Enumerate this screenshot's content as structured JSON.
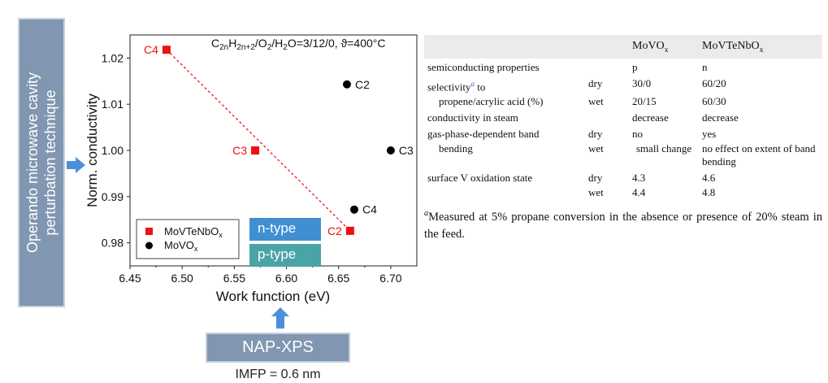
{
  "left_label": {
    "line1": "Operando microwave cavity",
    "line2": "perturbation technique"
  },
  "bottom_label": {
    "box": "NAP-XPS",
    "note": "IMFP = 0.6 nm"
  },
  "tags": {
    "n_type": "n-type",
    "p_type": "p-type"
  },
  "chart_data": {
    "type": "scatter",
    "title": "C2nH2n+2/O2/H2O=3/12/0, ϑ=400°C",
    "xlabel": "Work function (eV)",
    "ylabel": "Norm. conductivity",
    "xlim": [
      6.45,
      6.725
    ],
    "ylim": [
      0.975,
      1.025
    ],
    "x_ticks": [
      "6.45",
      "6.50",
      "6.55",
      "6.60",
      "6.65",
      "6.70"
    ],
    "y_ticks": [
      "0.98",
      "0.99",
      "1.00",
      "1.01",
      "1.02"
    ],
    "series": [
      {
        "name": "MoVTeNbOx",
        "marker": "square",
        "color": "#ee1111",
        "trend_line": true,
        "points": [
          {
            "label": "C4",
            "x": 6.485,
            "y": 1.0218
          },
          {
            "label": "C3",
            "x": 6.57,
            "y": 1.0
          },
          {
            "label": "C2",
            "x": 6.661,
            "y": 0.9826
          }
        ]
      },
      {
        "name": "MoVOx",
        "marker": "circle",
        "color": "#000000",
        "points": [
          {
            "label": "C2",
            "x": 6.658,
            "y": 1.0143
          },
          {
            "label": "C3",
            "x": 6.7,
            "y": 1.0
          },
          {
            "label": "C4",
            "x": 6.665,
            "y": 0.9872
          }
        ]
      }
    ],
    "legend": "bottom-left",
    "grid": false
  },
  "table": {
    "columns": [
      "MoVOx",
      "MoVTeNbOx"
    ],
    "rows": [
      {
        "property": "semiconducting properties",
        "cond": "",
        "a": "p",
        "b": "n"
      },
      {
        "property": "selectivity",
        "sup": "a",
        "property_suffix": " to",
        "cond": "dry",
        "a": "30/0",
        "b": "60/20"
      },
      {
        "property": "propene/acrylic acid (%)",
        "cond": "wet",
        "a": "20/15",
        "b": "60/30"
      },
      {
        "property": "conductivity in steam",
        "cond": "",
        "a": "decrease",
        "b": "decrease"
      },
      {
        "property": "gas-phase-dependent band",
        "cond": "dry",
        "a": "no",
        "b": "yes"
      },
      {
        "property": "bending",
        "cond": "wet",
        "a": "small change",
        "b": "no effect on extent of band bending"
      },
      {
        "property": "surface V oxidation state",
        "cond": "dry",
        "a": "4.3",
        "b": "4.6"
      },
      {
        "property": "",
        "cond": "wet",
        "a": "4.4",
        "b": "4.8"
      }
    ],
    "footnote_marker": "a",
    "footnote": "Measured at 5% propane conversion in the absence or presence of 20% steam in the feed."
  },
  "colors": {
    "box_bg": "#8096b1",
    "arrow": "#4a90d9",
    "n_type": "#3f8fd2",
    "p_type": "#4aa3a6"
  }
}
